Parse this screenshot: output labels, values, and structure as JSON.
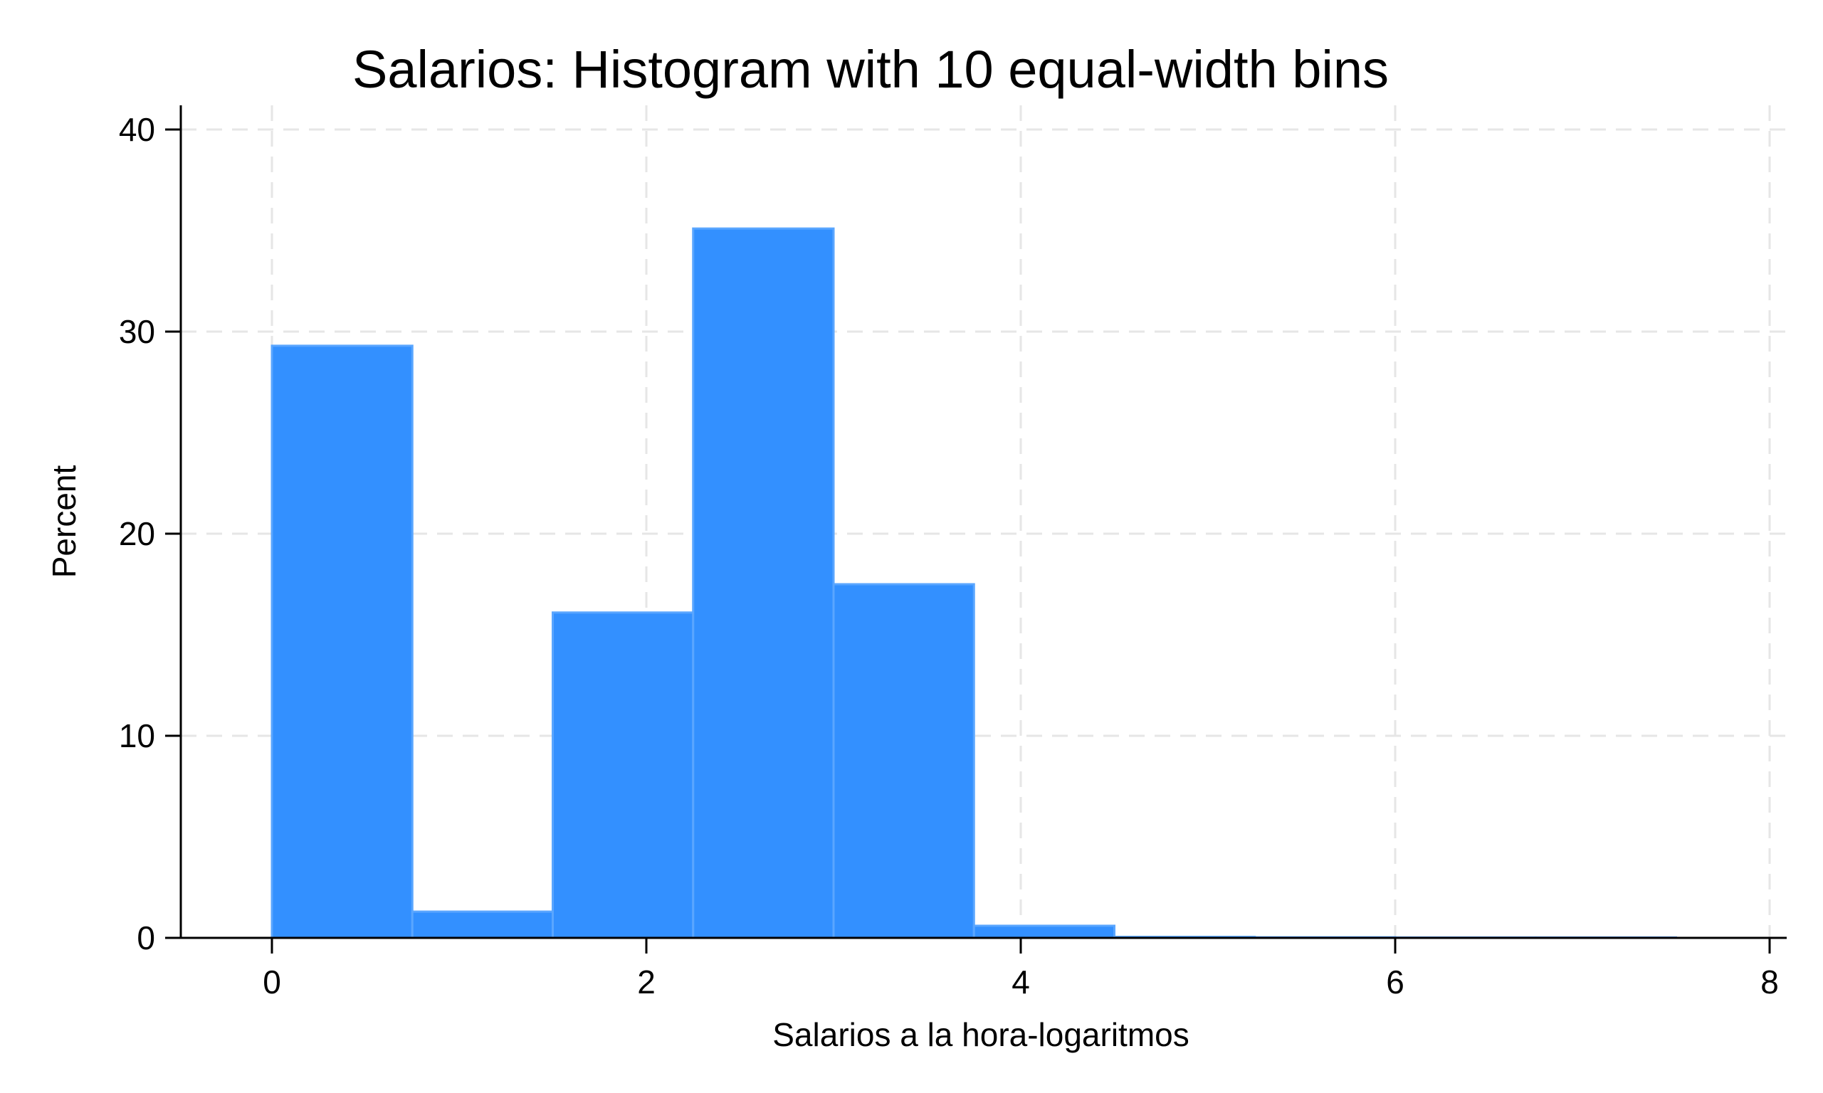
{
  "chart_data": {
    "type": "bar",
    "title": "Salarios: Histogram with 10 equal-width bins",
    "xlabel": "Salarios a la hora-logaritmos",
    "ylabel": "Percent",
    "bins": [
      {
        "x0": 0.0,
        "x1": 0.75,
        "value": 29.3
      },
      {
        "x0": 0.75,
        "x1": 1.5,
        "value": 1.3
      },
      {
        "x0": 1.5,
        "x1": 2.25,
        "value": 16.1
      },
      {
        "x0": 2.25,
        "x1": 3.0,
        "value": 35.1
      },
      {
        "x0": 3.0,
        "x1": 3.75,
        "value": 17.5
      },
      {
        "x0": 3.75,
        "x1": 4.5,
        "value": 0.6
      },
      {
        "x0": 4.5,
        "x1": 5.25,
        "value": 0.05
      },
      {
        "x0": 5.25,
        "x1": 6.0,
        "value": 0.03
      },
      {
        "x0": 6.0,
        "x1": 6.75,
        "value": 0.02
      },
      {
        "x0": 6.75,
        "x1": 7.5,
        "value": 0.02
      }
    ],
    "xlim": [
      -0.5,
      8.1
    ],
    "ylim": [
      0,
      40.5
    ],
    "xticks": [
      0,
      2,
      4,
      6,
      8
    ],
    "yticks": [
      0,
      10,
      20,
      30,
      40
    ],
    "grid": true,
    "bar_color": "#3390ff"
  }
}
